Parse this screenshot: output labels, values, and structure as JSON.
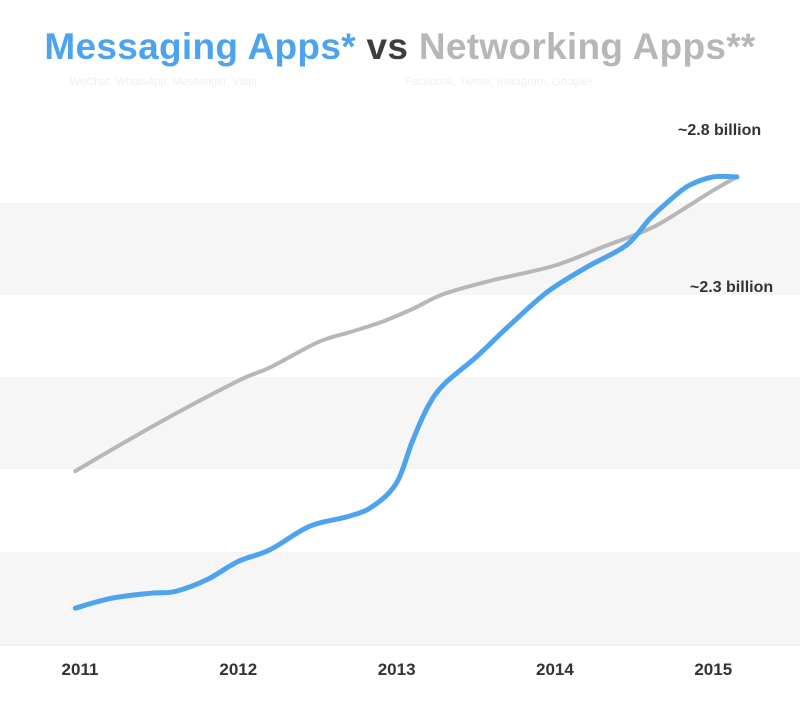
{
  "title": {
    "messaging": "Messaging Apps*",
    "vs": "vs",
    "networking": "Networking Apps**"
  },
  "subtitles": {
    "messaging": "WeChat, WhatsApp, Messenger, Viber",
    "networking": "Facebook, Twitter, Instagram, Google+"
  },
  "colors": {
    "messaging": "#4da3ee",
    "networking": "#b7b7b7",
    "band": "#f6f6f6",
    "text": "#333333"
  },
  "chart_data": {
    "type": "line",
    "grid": false,
    "xlim": [
      2011,
      2015.15
    ],
    "ylim": [
      0,
      3.2
    ],
    "xticks": [
      "2011",
      "2012",
      "2013",
      "2014",
      "2015"
    ],
    "series": [
      {
        "name": "Messaging Apps*",
        "x": [
          2010.97,
          2011.2,
          2011.45,
          2011.6,
          2011.8,
          2012.0,
          2012.2,
          2012.45,
          2012.7,
          2012.85,
          2013.0,
          2013.1,
          2013.2,
          2013.3,
          2013.5,
          2013.7,
          2013.95,
          2014.2,
          2014.45,
          2014.6,
          2014.75,
          2014.85,
          2015.0,
          2015.15
        ],
        "y": [
          0.22,
          0.28,
          0.31,
          0.32,
          0.39,
          0.5,
          0.57,
          0.71,
          0.77,
          0.83,
          0.97,
          1.22,
          1.43,
          1.56,
          1.72,
          1.9,
          2.11,
          2.26,
          2.39,
          2.55,
          2.68,
          2.75,
          2.8,
          2.8
        ]
      },
      {
        "name": "Networking Apps**",
        "x": [
          2010.97,
          2011.5,
          2012.0,
          2012.2,
          2012.5,
          2012.7,
          2012.9,
          2013.1,
          2013.3,
          2013.6,
          2014.0,
          2014.3,
          2014.6,
          2014.8,
          2015.0,
          2015.15
        ],
        "y": [
          1.04,
          1.33,
          1.58,
          1.66,
          1.81,
          1.87,
          1.93,
          2.01,
          2.1,
          2.18,
          2.27,
          2.38,
          2.49,
          2.6,
          2.72,
          2.8
        ]
      }
    ],
    "annotations": [
      {
        "text": "~2.8 billion",
        "x": 2014.85,
        "y": 2.78
      },
      {
        "text": "~2.3 billion",
        "x": 2014.95,
        "y": 2.3
      }
    ]
  }
}
